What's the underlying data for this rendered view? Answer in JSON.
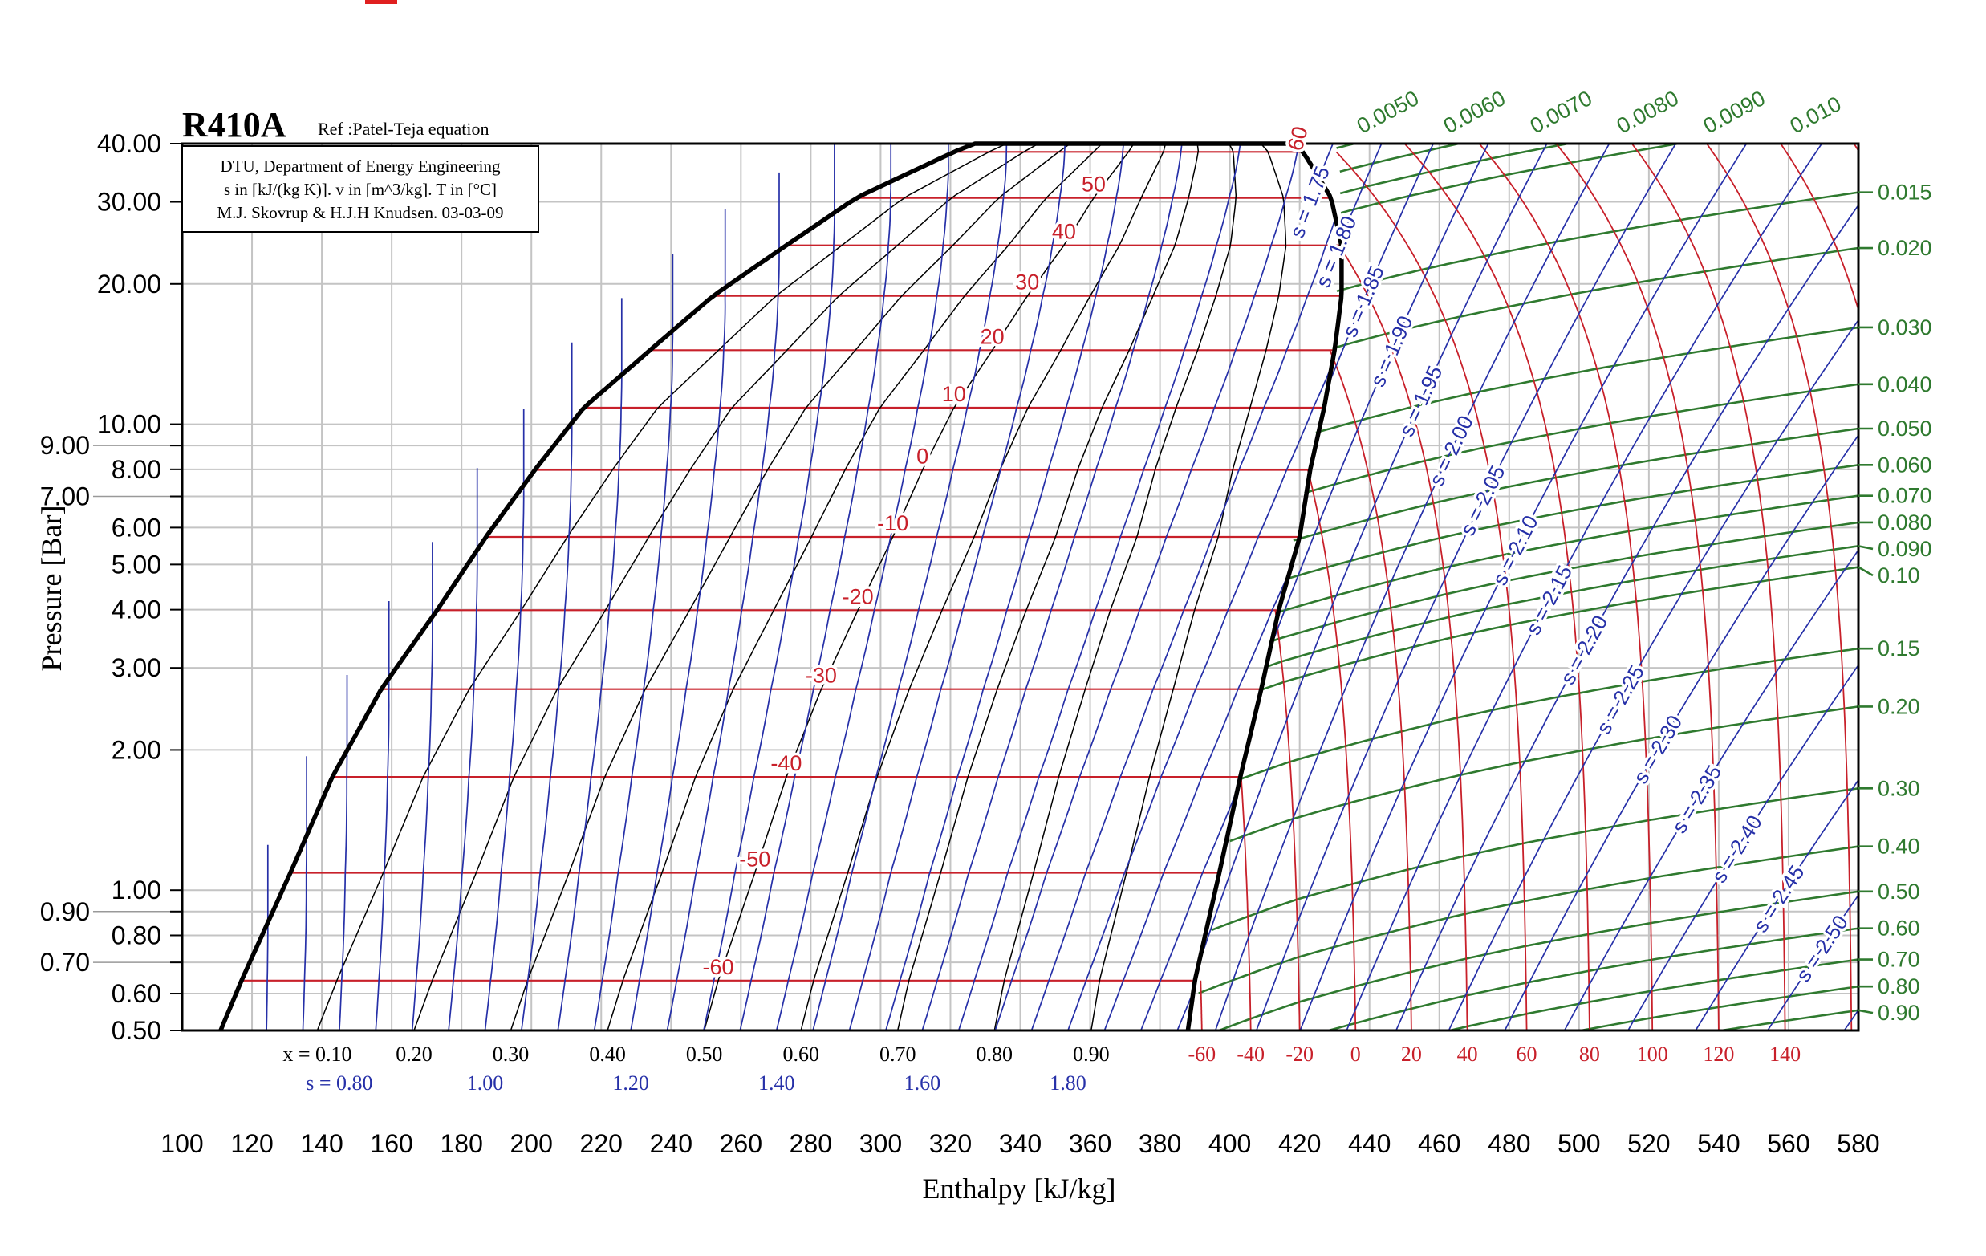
{
  "chart_data": {
    "type": "line",
    "title": "R410A",
    "subtitle": "Ref :Patel-Teja equation",
    "info_lines": [
      "DTU, Department of Energy Engineering",
      "s in [kJ/(kg K)]. v in [m^3/kg]. T in [°C]",
      "M.J. Skovrup & H.J.H Knudsen. 03-03-09"
    ],
    "xlabel": "Enthalpy [kJ/kg]",
    "ylabel": "Pressure [Bar]",
    "xlim": [
      100,
      580
    ],
    "ylim": [
      0.5,
      40
    ],
    "yscale": "log",
    "grid": true,
    "x_ticks": [
      100,
      120,
      140,
      160,
      180,
      200,
      220,
      240,
      260,
      280,
      300,
      320,
      340,
      360,
      380,
      400,
      420,
      440,
      460,
      480,
      500,
      520,
      540,
      560,
      580
    ],
    "y_ticks": [
      {
        "value": 0.5,
        "label": "0.50"
      },
      {
        "value": 0.6,
        "label": "0.60"
      },
      {
        "value": 0.7,
        "label": "0.70"
      },
      {
        "value": 0.8,
        "label": "0.80"
      },
      {
        "value": 0.9,
        "label": "0.90"
      },
      {
        "value": 1,
        "label": "1.00"
      },
      {
        "value": 2,
        "label": "2.00"
      },
      {
        "value": 3,
        "label": "3.00"
      },
      {
        "value": 4,
        "label": "4.00"
      },
      {
        "value": 5,
        "label": "5.00"
      },
      {
        "value": 6,
        "label": "6.00"
      },
      {
        "value": 7,
        "label": "7.00"
      },
      {
        "value": 8,
        "label": "8.00"
      },
      {
        "value": 9,
        "label": "9.00"
      },
      {
        "value": 10,
        "label": "10.00"
      },
      {
        "value": 20,
        "label": "20.00"
      },
      {
        "value": 30,
        "label": "30.00"
      },
      {
        "value": 40,
        "label": "40.00"
      }
    ],
    "saturation": {
      "columns": [
        "T_C",
        "p_bar",
        "h_liquid",
        "h_vapor"
      ],
      "rows": [
        [
          -64.5,
          0.5,
          111,
          388
        ],
        [
          -60,
          0.64,
          117,
          390
        ],
        [
          -50,
          1.09,
          131,
          397
        ],
        [
          -40,
          1.75,
          143,
          403
        ],
        [
          -30,
          2.7,
          157,
          409
        ],
        [
          -20,
          3.99,
          173,
          414
        ],
        [
          -10,
          5.73,
          187,
          420
        ],
        [
          0,
          7.98,
          201,
          423
        ],
        [
          10,
          10.85,
          215,
          427
        ],
        [
          20,
          14.42,
          234,
          430
        ],
        [
          30,
          18.85,
          252,
          432
        ],
        [
          40,
          24.2,
          273,
          432
        ],
        [
          50,
          30.6,
          293,
          429
        ],
        [
          60,
          38.4,
          321,
          421
        ],
        [
          61.5,
          40,
          327,
          418
        ]
      ],
      "s_liquid_at_first_row": 0.637
    },
    "isotherms_two_phase": [
      {
        "T": -60,
        "label": "-60"
      },
      {
        "T": -50,
        "label": "-50"
      },
      {
        "T": -40,
        "label": "-40"
      },
      {
        "T": -30,
        "label": "-30"
      },
      {
        "T": -20,
        "label": "-20"
      },
      {
        "T": -10,
        "label": "-10"
      },
      {
        "T": 0,
        "label": "0"
      },
      {
        "T": 10,
        "label": "10"
      },
      {
        "T": 20,
        "label": "20"
      },
      {
        "T": 30,
        "label": "30"
      },
      {
        "T": 40,
        "label": "40"
      },
      {
        "T": 50,
        "label": "50"
      },
      {
        "T": 60,
        "label": "60"
      }
    ],
    "isotherms_superheat": {
      "T": [
        -60,
        -40,
        -20,
        0,
        20,
        40,
        60,
        80,
        100,
        120,
        140,
        160,
        180,
        200,
        220
      ],
      "labels": [
        "-60",
        "-40",
        "-20",
        "0",
        "20",
        "40",
        "60",
        "80",
        "100",
        "120",
        "140"
      ],
      "h_at_0_5_bar": [
        392,
        406,
        420,
        436,
        452,
        468,
        485,
        503,
        521,
        540,
        559
      ]
    },
    "quality_lines": [
      {
        "x": 0.1,
        "label": "x = 0.10"
      },
      {
        "x": 0.2,
        "label": "0.20"
      },
      {
        "x": 0.3,
        "label": "0.30"
      },
      {
        "x": 0.4,
        "label": "0.40"
      },
      {
        "x": 0.5,
        "label": "0.50"
      },
      {
        "x": 0.6,
        "label": "0.60"
      },
      {
        "x": 0.7,
        "label": "0.70"
      },
      {
        "x": 0.8,
        "label": "0.80"
      },
      {
        "x": 0.9,
        "label": "0.90"
      }
    ],
    "isentropes_two_phase": {
      "s": [
        0.7,
        0.75,
        0.8,
        0.85,
        0.9,
        0.95,
        1.0,
        1.05,
        1.1,
        1.15,
        1.2,
        1.25,
        1.3,
        1.35,
        1.4,
        1.45,
        1.5,
        1.55,
        1.6,
        1.65,
        1.7,
        1.75,
        1.8,
        1.85,
        1.9,
        1.95
      ],
      "bottom_labels": [
        {
          "s": 0.8,
          "label": "s = 0.80"
        },
        {
          "s": 1.0,
          "label": "1.00"
        },
        {
          "s": 1.2,
          "label": "1.20"
        },
        {
          "s": 1.4,
          "label": "1.40"
        },
        {
          "s": 1.6,
          "label": "1.60"
        },
        {
          "s": 1.8,
          "label": "1.80"
        }
      ]
    },
    "isentropes_superheat": [
      {
        "s": 1.75,
        "label": "s = 1.75"
      },
      {
        "s": 1.8,
        "label": "s = 1.80"
      },
      {
        "s": 1.85,
        "label": "s = 1.85"
      },
      {
        "s": 1.9,
        "label": "s = 1.90"
      },
      {
        "s": 1.95,
        "label": "s = 1.95"
      },
      {
        "s": 2.0,
        "label": "s = 2.00"
      },
      {
        "s": 2.05,
        "label": "s = 2.05"
      },
      {
        "s": 2.1,
        "label": "s = 2.10"
      },
      {
        "s": 2.15,
        "label": "s = 2.15"
      },
      {
        "s": 2.2,
        "label": "s = 2.20"
      },
      {
        "s": 2.25,
        "label": "s = 2.25"
      },
      {
        "s": 2.3,
        "label": "s = 2.30"
      },
      {
        "s": 2.35,
        "label": "s = 2.35"
      },
      {
        "s": 2.4,
        "label": "s = 2.40"
      },
      {
        "s": 2.45,
        "label": "s = 2.45"
      },
      {
        "s": 2.5,
        "label": "s = 2.50"
      }
    ],
    "isentropes_superheat_unlabeled": [
      2.55,
      2.6,
      2.65,
      2.7
    ],
    "isochores": [
      {
        "v": 0.005,
        "label": "0.0050"
      },
      {
        "v": 0.006,
        "label": "0.0060"
      },
      {
        "v": 0.007,
        "label": "0.0070"
      },
      {
        "v": 0.008,
        "label": "0.0080"
      },
      {
        "v": 0.009,
        "label": "0.0090"
      },
      {
        "v": 0.01,
        "label": "0.010"
      },
      {
        "v": 0.015,
        "label": "0.015"
      },
      {
        "v": 0.02,
        "label": "0.020"
      },
      {
        "v": 0.03,
        "label": "0.030"
      },
      {
        "v": 0.04,
        "label": "0.040"
      },
      {
        "v": 0.05,
        "label": "0.050"
      },
      {
        "v": 0.06,
        "label": "0.060"
      },
      {
        "v": 0.07,
        "label": "0.070"
      },
      {
        "v": 0.08,
        "label": "0.080"
      },
      {
        "v": 0.09,
        "label": "0.090"
      },
      {
        "v": 0.1,
        "label": "0.10"
      },
      {
        "v": 0.15,
        "label": "0.15"
      },
      {
        "v": 0.2,
        "label": "0.20"
      },
      {
        "v": 0.3,
        "label": "0.30"
      },
      {
        "v": 0.4,
        "label": "0.40"
      },
      {
        "v": 0.5,
        "label": "0.50"
      },
      {
        "v": 0.6,
        "label": "0.60"
      },
      {
        "v": 0.7,
        "label": "0.70"
      },
      {
        "v": 0.8,
        "label": "0.80"
      },
      {
        "v": 0.9,
        "label": "0.90"
      }
    ],
    "colors": {
      "isotherm": "#c8202a",
      "isentrope": "#2630a8",
      "isochore": "#2f7a2f",
      "saturation": "#000000",
      "quality": "#000000"
    }
  }
}
